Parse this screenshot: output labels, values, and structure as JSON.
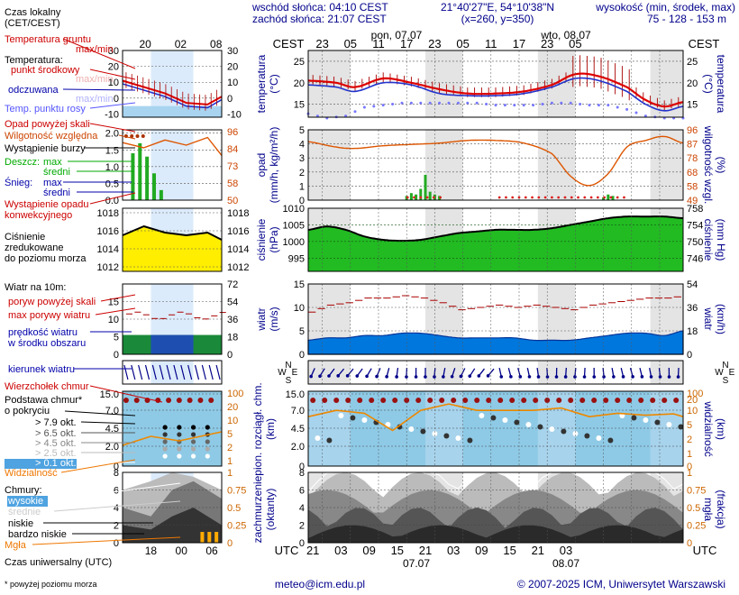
{
  "header": {
    "sunrise": "wschód słońca: 04:10 CEST",
    "sunset": "zachód słońca: 21:07 CEST",
    "coords": "21°40'27\"E, 54°10'38\"N",
    "grid": "(x=260, y=350)",
    "elevation_title": "wysokość (min, środek, max)",
    "elevation_values": "75 - 128 - 153 m"
  },
  "days_top": [
    "pon, 07.07",
    "wto, 08.07"
  ],
  "days_bottom": [
    "07.07",
    "08.07"
  ],
  "cest_label": "CEST",
  "utc_label": "UTC",
  "main_top_hours": [
    "23",
    "05",
    "11",
    "17",
    "23",
    "05",
    "11",
    "17",
    "23",
    "05"
  ],
  "main_bottom_hours": [
    "21",
    "03",
    "09",
    "15",
    "21",
    "03",
    "09",
    "15",
    "21",
    "03"
  ],
  "legend_top_hours": [
    "20",
    "02",
    "08"
  ],
  "legend_bottom_hours": [
    "18",
    "00",
    "06"
  ],
  "legend": {
    "time_zone": "Czas lokalny\n(CET/CEST)",
    "soil_temp": "Temperatura gruntu",
    "soil_range": "max/min",
    "temp_label": "Temperatura:",
    "temp_mid": "punkt środkowy",
    "temp_range": "max/min",
    "perceived": "odczuwana",
    "perceived_range": "max/min",
    "dew_point": "Temp. punktu rosy",
    "precip_above": "Opad powyżej skali",
    "humidity": "Wilgotność względna",
    "storm": "Wystąpienie burzy",
    "rain": "Deszcz:",
    "rain_max": "max",
    "rain_mean": "średni",
    "snow": "Śnieg:",
    "snow_max": "max",
    "snow_mean": "średni",
    "convective": "Wystąpienie opadu\nkonwekcyjnego",
    "pressure": "Ciśnienie\nzredukowane\ndo poziomu morza",
    "wind_title": "Wiatr na 10m:",
    "gust_above": "poryw powyżej skali",
    "max_gust": "max porywy wiatru",
    "mean_wind": "prędkość wiatru\nw środku obszaru",
    "wind_dir": "kierunek wiatru",
    "cloud_top": "Wierzchołek chmur",
    "cloud_base": "Podstawa chmur*\no pokryciu",
    "okta_79": "> 7.9 okt.",
    "okta_65": "> 6.5 okt.",
    "okta_45": "> 4.5 okt.",
    "okta_25": "> 2.5 okt.",
    "okta_01": "> 0.1 okt.",
    "visibility": "Widzialność",
    "clouds": "Chmury:",
    "high": "wysokie",
    "mid": "średnie",
    "low": "niskie",
    "very_low": "bardzo niskie",
    "fog": "Mgła",
    "utc_axis": "Czas uniwersalny (UTC)"
  },
  "axis_titles": {
    "temp_left": "temperatura\n(°C)",
    "temp_right": "temperatura\n(°C)",
    "precip_left": "opad\n(mm/h, kg/m²/h)",
    "precip_right": "(%)\nwilgotność wzgl.",
    "pressure_left": "ciśnienie\n(hPa)",
    "pressure_right": "(mm Hg)\nciśnienie",
    "wind_left": "wiatr\n(m/s)",
    "wind_right": "(km/h)\nwiatr",
    "dir_letters": [
      "N",
      "W",
      "E",
      "S"
    ],
    "cloud_left": "pion. rozciągł. chm.\n(km)",
    "cloud_right": "(km)\nwidzialność",
    "cover_left": "zachmurzenie\n(oktanty)",
    "cover_right": "(frakcja)\nmgła"
  },
  "footer": {
    "note": "* powyżej poziomu morza",
    "email": "meteo@icm.edu.pl",
    "copyright": "© 2007-2025 ICM, Uniwersytet Warszawski"
  },
  "chart_data": [
    {
      "type": "line",
      "name_hint": "temperature",
      "x_unit": "hours from 2025-07-06 20:00 CEST",
      "y_ticks": [
        15,
        20,
        25
      ],
      "y_ticks_right": [
        15,
        20,
        25
      ],
      "ylim": [
        12,
        27.5
      ],
      "series": [
        {
          "name": "temperatura",
          "color": "#dd0000",
          "x": [
            0,
            6,
            10,
            16,
            22,
            28,
            34,
            40,
            46,
            52,
            57,
            62,
            68,
            72,
            76,
            80
          ],
          "y": [
            20.5,
            20.0,
            19.0,
            21.0,
            20.0,
            18.5,
            17.5,
            17.5,
            18.0,
            19.5,
            22.0,
            21.5,
            19.0,
            16.0,
            14.5,
            15.5
          ]
        },
        {
          "name": "odczuwana",
          "color": "#2233cc",
          "x": [
            0,
            6,
            10,
            16,
            22,
            28,
            34,
            40,
            46,
            52,
            57,
            62,
            68,
            72,
            76,
            80
          ],
          "y": [
            19.5,
            19.0,
            18.0,
            20.0,
            19.5,
            17.5,
            17.0,
            17.0,
            17.5,
            19.0,
            21.0,
            20.5,
            18.0,
            15.0,
            13.5,
            14.5
          ]
        },
        {
          "name": "punkt rosy",
          "color": "#7777ff",
          "x": [
            0,
            4,
            8,
            12,
            16,
            20,
            24,
            28,
            32,
            36,
            40,
            44,
            48,
            52,
            56,
            60,
            64,
            68,
            72,
            76,
            80
          ],
          "y": [
            15.0,
            14.0,
            14.5,
            16.5,
            17.0,
            17.5,
            17.5,
            17.5,
            17.5,
            17.5,
            17.0,
            17.0,
            17.0,
            17.5,
            17.5,
            17.0,
            17.0,
            16.0,
            14.5,
            14.0,
            14.0
          ]
        }
      ]
    },
    {
      "type": "bar",
      "name_hint": "precipitation_humidity",
      "y_ticks": [
        0,
        1,
        2,
        3,
        4,
        5
      ],
      "y_ticks_right": [
        49,
        58,
        68,
        78,
        87,
        96
      ],
      "ylim": [
        0,
        5
      ],
      "rain": {
        "x": [
          21,
          22,
          23,
          24,
          25,
          26,
          27,
          28,
          63,
          64,
          65
        ],
        "values": [
          0.3,
          0.5,
          0.4,
          0.8,
          1.8,
          0.6,
          0.4,
          0.3,
          0.2,
          0.4,
          0.3
        ]
      },
      "humidity": {
        "x": [
          0,
          6,
          10,
          16,
          22,
          28,
          34,
          40,
          46,
          52,
          56,
          60,
          64,
          68,
          72,
          76,
          80
        ],
        "y": [
          89,
          85,
          84,
          86,
          87,
          88,
          90,
          90,
          88,
          80,
          63,
          56,
          65,
          85,
          90,
          93,
          88
        ]
      }
    },
    {
      "type": "area",
      "name_hint": "pressure",
      "y_ticks": [
        995,
        1000,
        1005,
        1010
      ],
      "y_ticks_right": [
        746,
        750,
        754,
        758
      ],
      "ylim": [
        991,
        1010
      ],
      "x": [
        0,
        4,
        8,
        12,
        16,
        20,
        24,
        28,
        32,
        36,
        40,
        44,
        48,
        52,
        56,
        60,
        64,
        68,
        72,
        76,
        80
      ],
      "y": [
        1003.5,
        1004.5,
        1003.5,
        1001.5,
        1000.5,
        1000.2,
        1000.5,
        1001.5,
        1002.5,
        1003.0,
        1003.5,
        1003.5,
        1003.5,
        1004.0,
        1005.0,
        1006.0,
        1007.0,
        1007.5,
        1007.5,
        1007.5,
        1007.0
      ]
    },
    {
      "type": "area",
      "name_hint": "wind",
      "y_ticks": [
        0,
        5,
        10,
        15
      ],
      "y_ticks_right": [
        0,
        18,
        36,
        54
      ],
      "ylim": [
        0,
        15
      ],
      "x": [
        0,
        4,
        8,
        12,
        16,
        20,
        24,
        28,
        32,
        36,
        40,
        44,
        48,
        52,
        56,
        60,
        64,
        68,
        72,
        76,
        80
      ],
      "mean": [
        3.0,
        3.5,
        3.5,
        4.0,
        4.0,
        4.5,
        4.5,
        4.0,
        3.5,
        3.5,
        3.5,
        3.5,
        3.0,
        3.0,
        3.0,
        3.5,
        4.0,
        4.5,
        4.5,
        4.0,
        5.0
      ],
      "gust": [
        9.0,
        10.5,
        11.0,
        12.0,
        12.0,
        12.5,
        12.0,
        11.0,
        9.5,
        10.0,
        10.5,
        10.0,
        10.5,
        10.0,
        9.5,
        10.5,
        11.0,
        11.5,
        12.0,
        12.0,
        12.5
      ]
    },
    {
      "type": "scatter",
      "name_hint": "cloud_layers_visibility",
      "y_ticks": [
        0,
        2.0,
        4.5,
        7.0,
        15.0
      ],
      "y_ticks_right": [
        0,
        1,
        2,
        5,
        10,
        20,
        100
      ],
      "cloud_top_km": 11.0,
      "visibility_km": {
        "x": [
          0,
          6,
          12,
          18,
          24,
          30,
          36,
          42,
          48,
          54,
          60,
          66,
          72,
          78,
          80
        ],
        "y": [
          20,
          30,
          25,
          8,
          30,
          45,
          30,
          30,
          30,
          35,
          20,
          25,
          22,
          24,
          20
        ]
      }
    },
    {
      "type": "area",
      "name_hint": "cloud_cover",
      "y_ticks": [
        0,
        2,
        4,
        6,
        8
      ],
      "y_ticks_right": [
        0,
        0.25,
        0.5,
        0.75,
        1
      ],
      "ylim": [
        0,
        8
      ]
    }
  ]
}
